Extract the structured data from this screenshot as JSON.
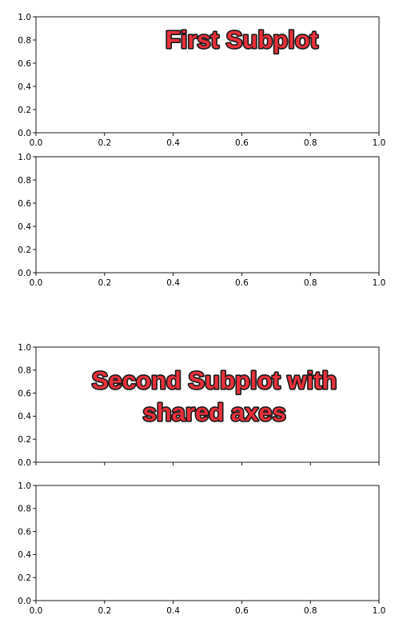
{
  "chart_data": [
    {
      "type": "line",
      "title": "",
      "xlabel": "",
      "ylabel": "",
      "xlim": [
        0.0,
        1.0
      ],
      "ylim": [
        0.0,
        1.0
      ],
      "xticks": [
        "0.0",
        "0.2",
        "0.4",
        "0.6",
        "0.8",
        "1.0"
      ],
      "yticks": [
        "0.0",
        "0.2",
        "0.4",
        "0.6",
        "0.8",
        "1.0"
      ],
      "show_x_tick_labels": true,
      "grid": false,
      "series": [],
      "annotation": {
        "lines": [
          "First Subplot"
        ],
        "x": 0.6,
        "y": 0.8,
        "color": "#e8303a",
        "outline": "#1a1a1a"
      }
    },
    {
      "type": "line",
      "title": "",
      "xlabel": "",
      "ylabel": "",
      "xlim": [
        0.0,
        1.0
      ],
      "ylim": [
        0.0,
        1.0
      ],
      "xticks": [
        "0.0",
        "0.2",
        "0.4",
        "0.6",
        "0.8",
        "1.0"
      ],
      "yticks": [
        "0.0",
        "0.2",
        "0.4",
        "0.6",
        "0.8",
        "1.0"
      ],
      "show_x_tick_labels": true,
      "grid": false,
      "series": []
    },
    {
      "type": "line",
      "title": "",
      "xlabel": "",
      "ylabel": "",
      "xlim": [
        0.0,
        1.0
      ],
      "ylim": [
        0.0,
        1.0
      ],
      "xticks": [
        "0.0",
        "0.2",
        "0.4",
        "0.6",
        "0.8",
        "1.0"
      ],
      "yticks": [
        "0.0",
        "0.2",
        "0.4",
        "0.6",
        "0.8",
        "1.0"
      ],
      "show_x_tick_labels": false,
      "grid": false,
      "series": [],
      "annotation": {
        "lines": [
          "Second Subplot with",
          "shared axes"
        ],
        "x": 0.52,
        "y": 0.71,
        "color": "#e8303a",
        "outline": "#1a1a1a"
      }
    },
    {
      "type": "line",
      "title": "",
      "xlabel": "",
      "ylabel": "",
      "xlim": [
        0.0,
        1.0
      ],
      "ylim": [
        0.0,
        1.0
      ],
      "xticks": [
        "0.0",
        "0.2",
        "0.4",
        "0.6",
        "0.8",
        "1.0"
      ],
      "yticks": [
        "0.0",
        "0.2",
        "0.4",
        "0.6",
        "0.8",
        "1.0"
      ],
      "show_x_tick_labels": true,
      "grid": false,
      "series": []
    }
  ]
}
